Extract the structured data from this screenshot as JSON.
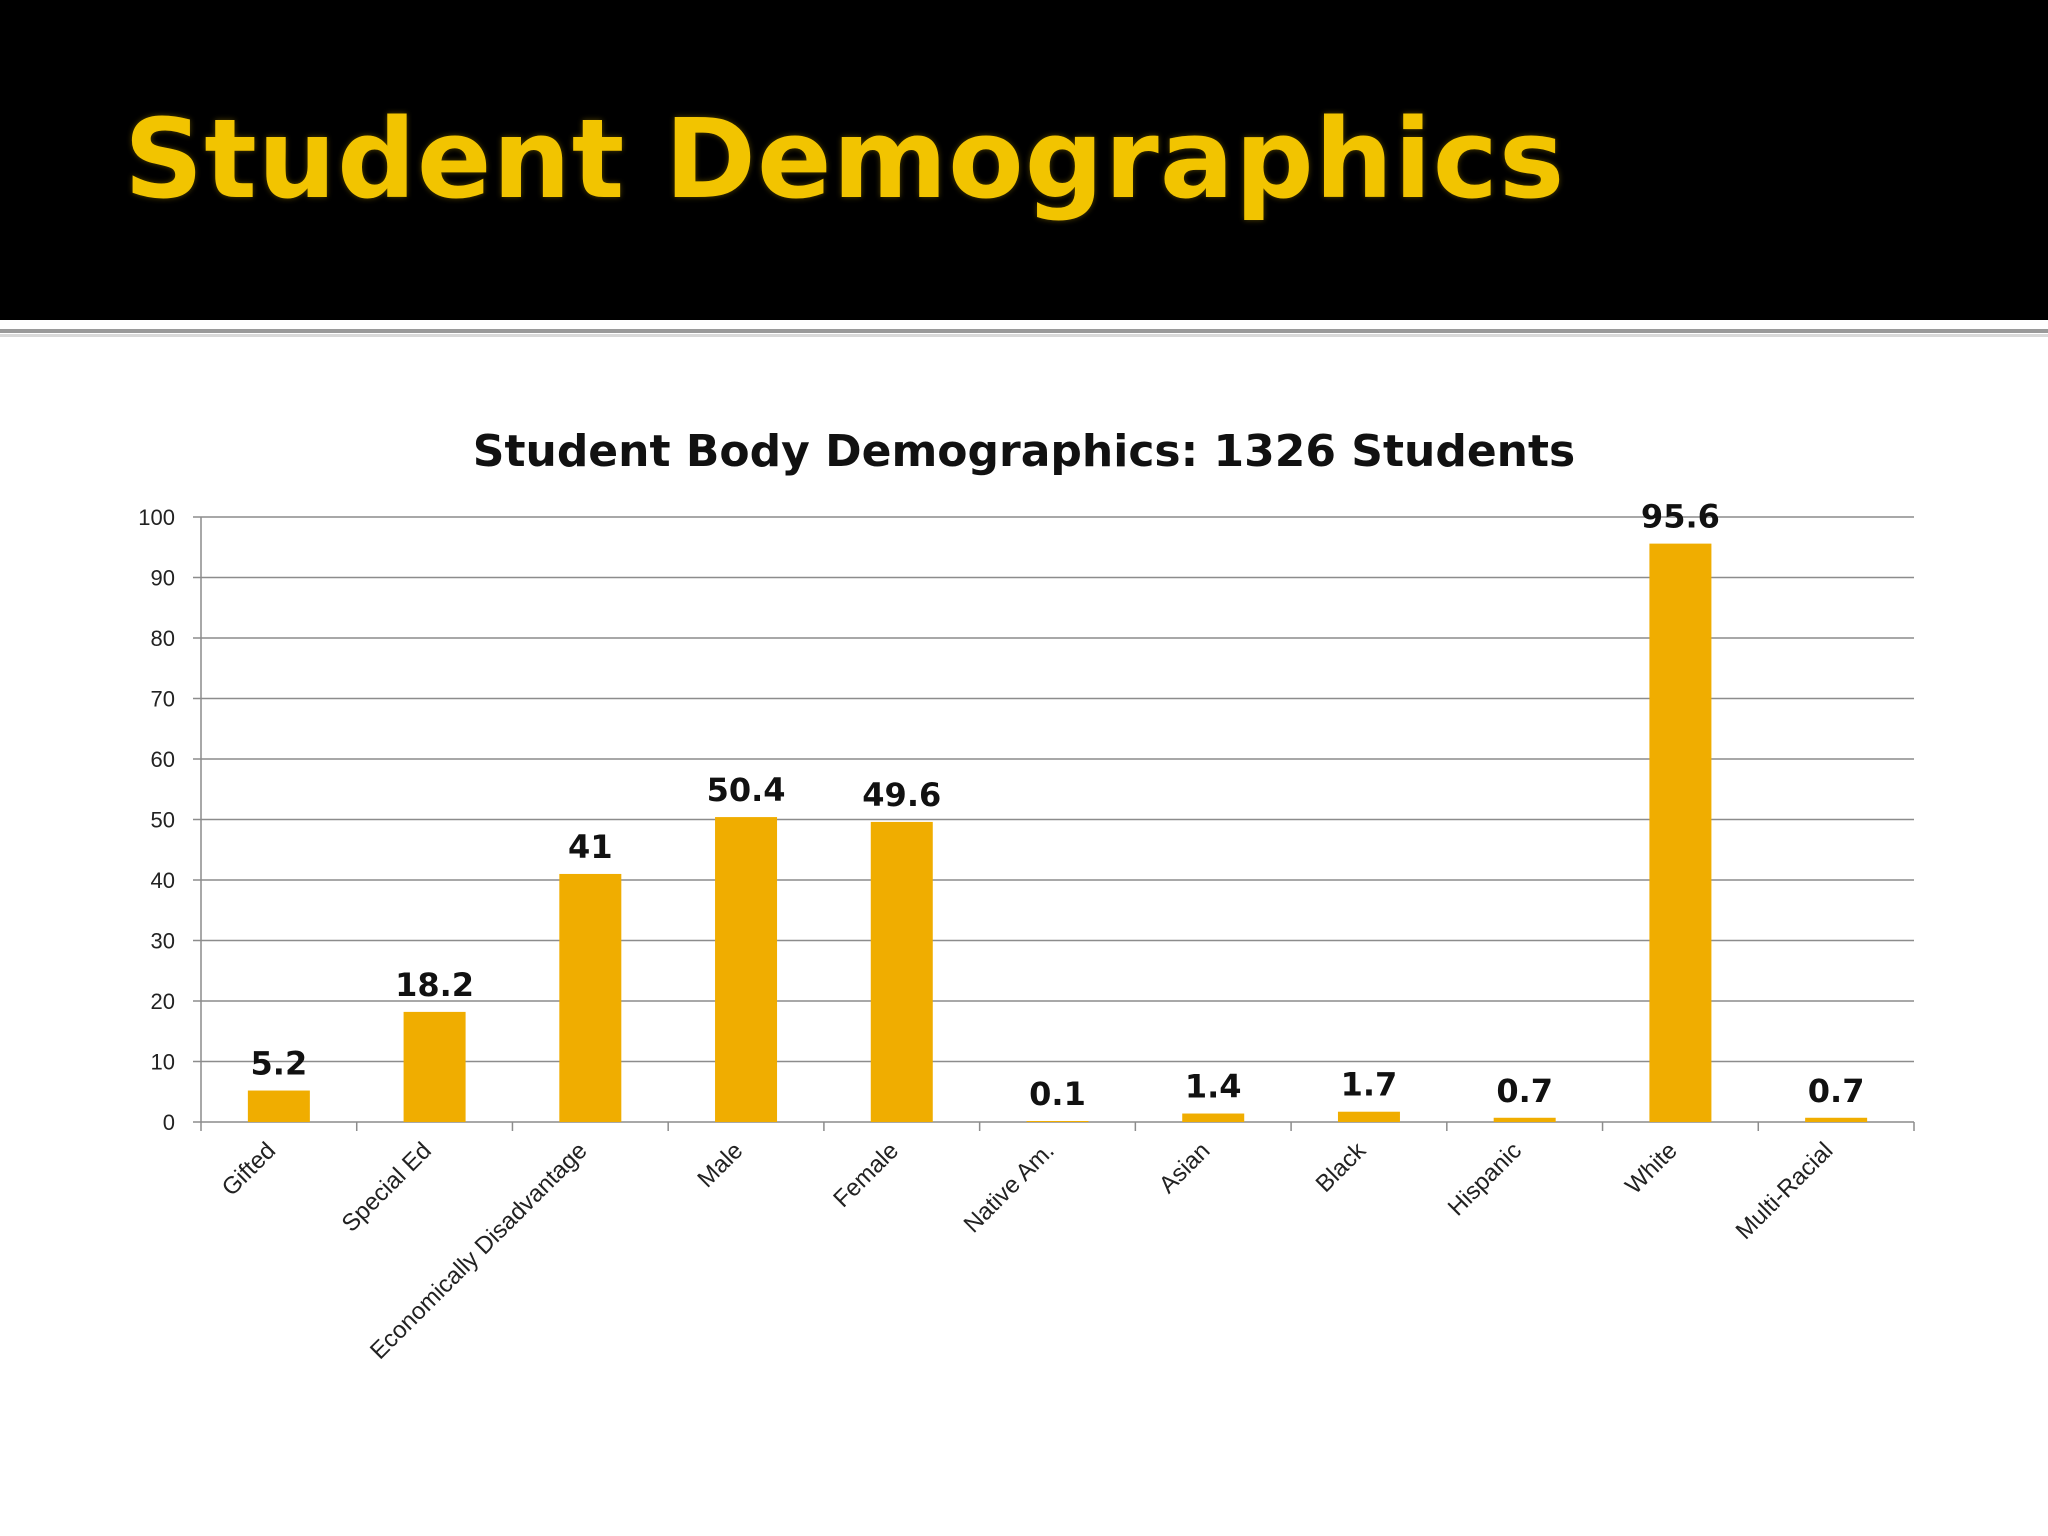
{
  "slide": {
    "title": "Student Demographics"
  },
  "colors": {
    "header_bg": "#000000",
    "title": "#f2c400",
    "bar": "#f0ad00",
    "grid": "#8c8c8c"
  },
  "chart_data": {
    "type": "bar",
    "title": "Student Body Demographics: 1326 Students",
    "xlabel": "",
    "ylabel": "",
    "categories": [
      "Gifted",
      "Special Ed",
      "Economically Disadvantage",
      "Male",
      "Female",
      "Native Am.",
      "Asian",
      "Black",
      "Hispanic",
      "White",
      "Multi-Racial"
    ],
    "values": [
      5.2,
      18.2,
      41,
      50.4,
      49.6,
      0.1,
      1.4,
      1.7,
      0.7,
      95.6,
      0.7
    ],
    "value_labels": [
      "5.2",
      "18.2",
      "41",
      "50.4",
      "49.6",
      "0.1",
      "1.4",
      "1.7",
      "0.7",
      "95.6",
      "0.7"
    ],
    "ylim": [
      0,
      100
    ],
    "yticks": [
      "0",
      "10",
      "20",
      "30",
      "40",
      "50",
      "60",
      "70",
      "80",
      "90",
      "100"
    ],
    "grid": true,
    "legend": "none"
  }
}
